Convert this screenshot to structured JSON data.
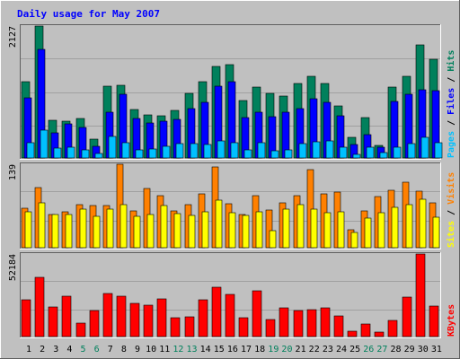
{
  "title": "Daily usage for May 2007",
  "colors": {
    "background": "#c0c0c0",
    "plot": "#c0c0c0",
    "border_light": "#ffffff",
    "border_dark": "#606060",
    "title": "#0000ff",
    "hits": "#00805c",
    "files": "#0000ff",
    "pages": "#00c0ff",
    "visits": "#ff8000",
    "sites": "#ffff00",
    "kbytes": "#ff0000",
    "weekend_label": "#00805c",
    "weekday_label": "#000000"
  },
  "chart_data": [
    {
      "type": "bar",
      "name": "hits-files-pages",
      "legend": [
        "Pages",
        "Files",
        "Hits"
      ],
      "ymax_label": "2127",
      "ylim": [
        0,
        2127
      ],
      "categories": [
        "1",
        "2",
        "3",
        "4",
        "5",
        "6",
        "7",
        "8",
        "9",
        "10",
        "11",
        "12",
        "13",
        "14",
        "15",
        "16",
        "17",
        "18",
        "19",
        "20",
        "21",
        "22",
        "23",
        "24",
        "25",
        "26",
        "27",
        "28",
        "29",
        "30",
        "31"
      ],
      "series": [
        {
          "name": "Hits",
          "values": [
            1226,
            2127,
            610,
            594,
            643,
            300,
            1161,
            1169,
            779,
            688,
            687,
            771,
            1040,
            1232,
            1479,
            1511,
            928,
            1138,
            1044,
            1005,
            1205,
            1317,
            1197,
            835,
            336,
            657,
            197,
            1142,
            1318,
            1830,
            1595
          ]
        },
        {
          "name": "Files",
          "values": [
            970,
            1753,
            400,
            550,
            487,
            195,
            744,
            1022,
            630,
            571,
            598,
            624,
            794,
            892,
            1158,
            1226,
            654,
            739,
            672,
            745,
            802,
            951,
            892,
            674,
            212,
            380,
            170,
            905,
            1025,
            1098,
            1084
          ]
        },
        {
          "name": "Pages",
          "values": [
            243,
            446,
            165,
            169,
            129,
            76,
            350,
            244,
            132,
            141,
            190,
            232,
            228,
            217,
            271,
            252,
            137,
            245,
            120,
            131,
            226,
            263,
            275,
            169,
            65,
            171,
            83,
            177,
            235,
            340,
            251
          ]
        }
      ]
    },
    {
      "type": "bar",
      "name": "visits-sites",
      "legend": [
        "Sites",
        "Visits"
      ],
      "ymax_label": "139",
      "ylim": [
        0,
        139
      ],
      "categories": [
        "1",
        "2",
        "3",
        "4",
        "5",
        "6",
        "7",
        "8",
        "9",
        "10",
        "11",
        "12",
        "13",
        "14",
        "15",
        "16",
        "17",
        "18",
        "19",
        "20",
        "21",
        "22",
        "23",
        "24",
        "25",
        "26",
        "27",
        "28",
        "29",
        "30",
        "31"
      ],
      "series": [
        {
          "name": "Visits",
          "values": [
            66,
            100,
            56,
            60,
            72,
            70,
            70,
            139,
            61,
            99,
            87,
            62,
            72,
            90,
            134,
            73,
            56,
            87,
            63,
            74,
            87,
            130,
            89,
            93,
            30,
            62,
            85,
            95,
            109,
            94,
            75
          ]
        },
        {
          "name": "Sites",
          "values": [
            60,
            75,
            55,
            55,
            65,
            53,
            64,
            71,
            53,
            55,
            70,
            57,
            54,
            60,
            79,
            58,
            54,
            60,
            28,
            64,
            71,
            64,
            59,
            60,
            26,
            50,
            58,
            67,
            71,
            81,
            51
          ]
        }
      ]
    },
    {
      "type": "bar",
      "name": "kbytes",
      "legend": [
        "KBytes"
      ],
      "ymax_label": "52184",
      "ylim": [
        0,
        52184
      ],
      "categories": [
        "1",
        "2",
        "3",
        "4",
        "5",
        "6",
        "7",
        "8",
        "9",
        "10",
        "11",
        "12",
        "13",
        "14",
        "15",
        "16",
        "17",
        "18",
        "19",
        "20",
        "21",
        "22",
        "23",
        "24",
        "25",
        "26",
        "27",
        "28",
        "29",
        "30",
        "31"
      ],
      "series": [
        {
          "name": "KBytes",
          "values": [
            23460,
            37630,
            18490,
            25540,
            8340,
            16480,
            27420,
            25540,
            20810,
            19770,
            23980,
            11930,
            12720,
            23200,
            31440,
            26600,
            12000,
            29210,
            10890,
            18000,
            16400,
            17070,
            17970,
            12860,
            3320,
            7710,
            2590,
            10380,
            25000,
            52184,
            19390
          ]
        }
      ]
    }
  ],
  "x_labels": {
    "days": [
      "1",
      "2",
      "3",
      "4",
      "5",
      "6",
      "7",
      "8",
      "9",
      "10",
      "11",
      "12",
      "13",
      "14",
      "15",
      "16",
      "17",
      "18",
      "19",
      "20",
      "21",
      "22",
      "23",
      "24",
      "25",
      "26",
      "27",
      "28",
      "29",
      "30",
      "31"
    ],
    "weekend_days": [
      "5",
      "6",
      "12",
      "13",
      "19",
      "20",
      "26",
      "27"
    ]
  }
}
